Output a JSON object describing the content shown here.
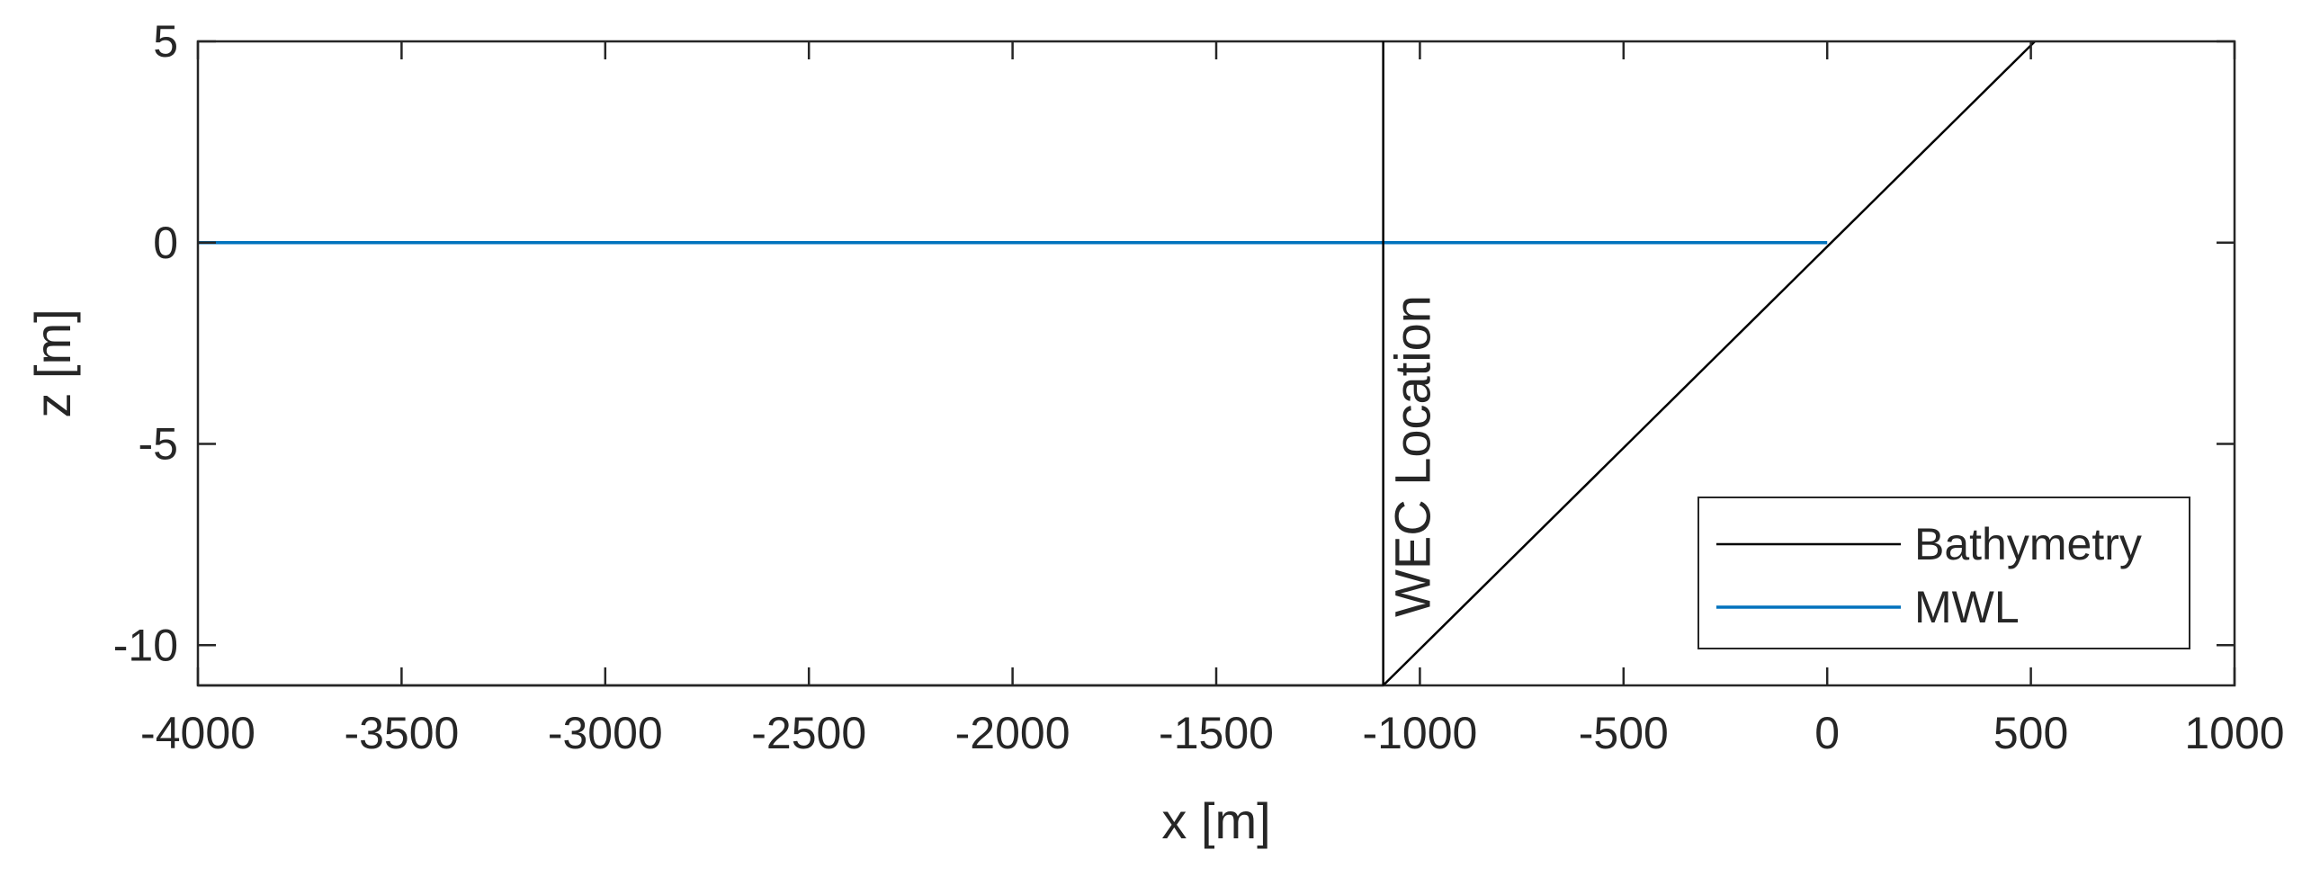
{
  "chart_data": {
    "type": "line",
    "title": "",
    "xlabel": "x [m]",
    "ylabel": "z [m]",
    "xlim": [
      -4000,
      1000
    ],
    "ylim": [
      -11,
      5
    ],
    "xticks": [
      -4000,
      -3500,
      -3000,
      -2500,
      -2000,
      -1500,
      -1000,
      -500,
      0,
      500,
      1000
    ],
    "yticks": [
      -10,
      -5,
      0,
      5
    ],
    "grid": false,
    "legend_position": "bottom-right",
    "series": [
      {
        "name": "Bathymetry",
        "color": "#000000",
        "x": [
          -4000,
          -1090,
          510
        ],
        "y": [
          -11,
          -11,
          5
        ]
      },
      {
        "name": "MWL",
        "color": "#0072BD",
        "x": [
          -4000,
          0
        ],
        "y": [
          0,
          0
        ]
      }
    ],
    "annotations": [
      {
        "text": "WEC Location",
        "type": "vertical-line",
        "x": -1090,
        "color": "#000000"
      }
    ]
  }
}
